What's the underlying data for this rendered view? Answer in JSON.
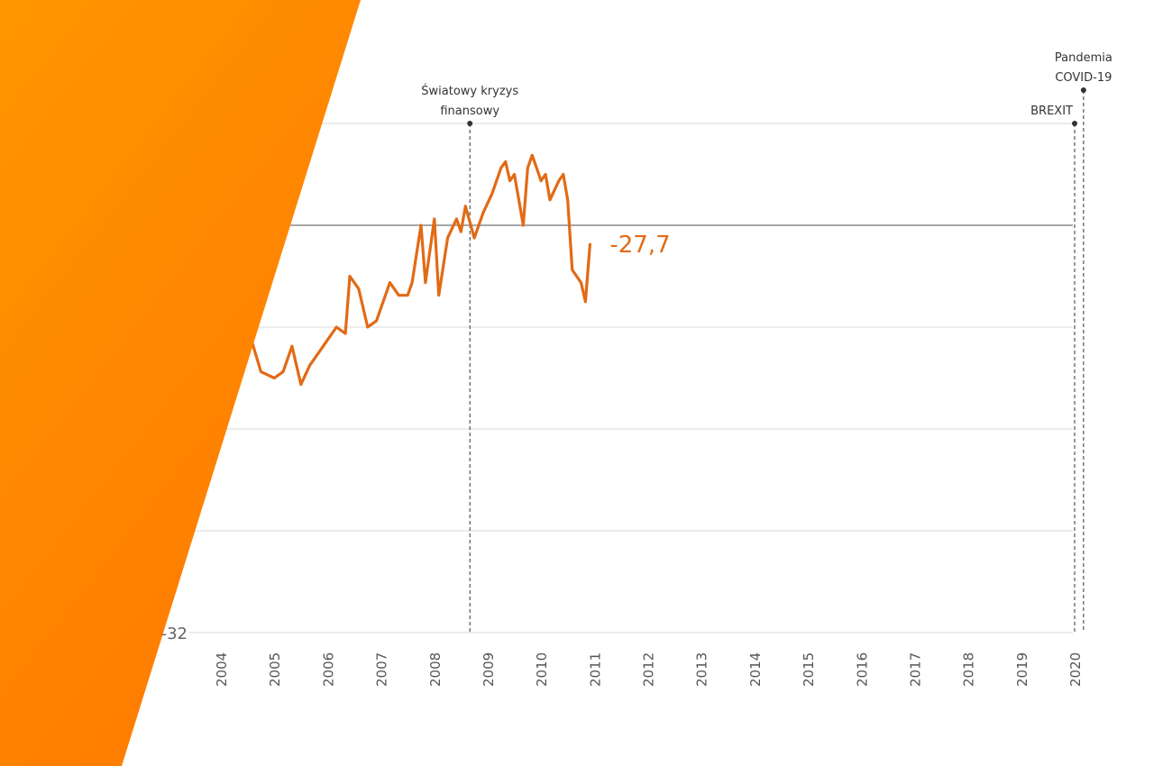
{
  "chart_data": {
    "type": "line",
    "title": "",
    "xlabel": "",
    "ylabel": "",
    "ylim": [
      -32,
      8
    ],
    "y_tick_labels_visible": [
      "-32"
    ],
    "x_tick_labels": [
      "2004",
      "2005",
      "2006",
      "2007",
      "2008",
      "2009",
      "2010",
      "2011",
      "2012",
      "2013",
      "2014",
      "2015",
      "2016",
      "2017",
      "2018",
      "2019",
      "2020"
    ],
    "grid": "horizontal",
    "reference_line": 0,
    "last_value_label": "-27,7",
    "series": [
      {
        "color": "#E26A16",
        "points": [
          [
            "2004-01",
            -12.0
          ],
          [
            "2004-04",
            -10.0
          ],
          [
            "2004-07",
            -8.0
          ],
          [
            "2004-10",
            -11.5
          ],
          [
            "2005-01",
            -12.0
          ],
          [
            "2005-03",
            -11.5
          ],
          [
            "2005-05",
            -9.5
          ],
          [
            "2005-07",
            -12.5
          ],
          [
            "2005-09",
            -11.0
          ],
          [
            "2005-11",
            -10.0
          ],
          [
            "2006-01",
            -9.0
          ],
          [
            "2006-03",
            -8.0
          ],
          [
            "2006-05",
            -8.5
          ],
          [
            "2006-06",
            -4.0
          ],
          [
            "2006-08",
            -5.0
          ],
          [
            "2006-10",
            -8.0
          ],
          [
            "2006-12",
            -7.5
          ],
          [
            "2007-02",
            -5.5
          ],
          [
            "2007-03",
            -4.5
          ],
          [
            "2007-05",
            -5.5
          ],
          [
            "2007-07",
            -5.5
          ],
          [
            "2007-08",
            -4.5
          ],
          [
            "2007-10",
            0.0
          ],
          [
            "2007-11",
            -4.5
          ],
          [
            "2008-01",
            0.5
          ],
          [
            "2008-02",
            -5.5
          ],
          [
            "2008-04",
            -1.0
          ],
          [
            "2008-06",
            0.5
          ],
          [
            "2008-07",
            -0.5
          ],
          [
            "2008-08",
            1.5
          ],
          [
            "2008-10",
            -1.0
          ],
          [
            "2008-12",
            1.0
          ],
          [
            "2009-02",
            2.5
          ],
          [
            "2009-04",
            4.5
          ],
          [
            "2009-05",
            5.0
          ],
          [
            "2009-06",
            3.5
          ],
          [
            "2009-07",
            4.0
          ],
          [
            "2009-08",
            2.0
          ],
          [
            "2009-09",
            0.0
          ],
          [
            "2009-10",
            4.5
          ],
          [
            "2009-11",
            5.5
          ],
          [
            "2009-12",
            4.5
          ],
          [
            "2010-01",
            3.5
          ],
          [
            "2010-02",
            4.0
          ],
          [
            "2010-03",
            2.0
          ],
          [
            "2010-05",
            3.5
          ],
          [
            "2010-06",
            4.0
          ],
          [
            "2010-07",
            2.0
          ],
          [
            "2010-08",
            -3.5
          ],
          [
            "2010-10",
            -4.5
          ],
          [
            "2010-11",
            -6.0
          ],
          [
            "2010-12",
            -1.5
          ]
        ]
      }
    ],
    "annotations": [
      {
        "x": "2008-09",
        "label": [
          "Światowy kryzys",
          "finansowy"
        ]
      },
      {
        "x": "2020-01",
        "label": [
          "BREXIT"
        ]
      },
      {
        "x": "2020-03",
        "label": [
          "Pandemia",
          "COVID-19"
        ]
      }
    ]
  }
}
